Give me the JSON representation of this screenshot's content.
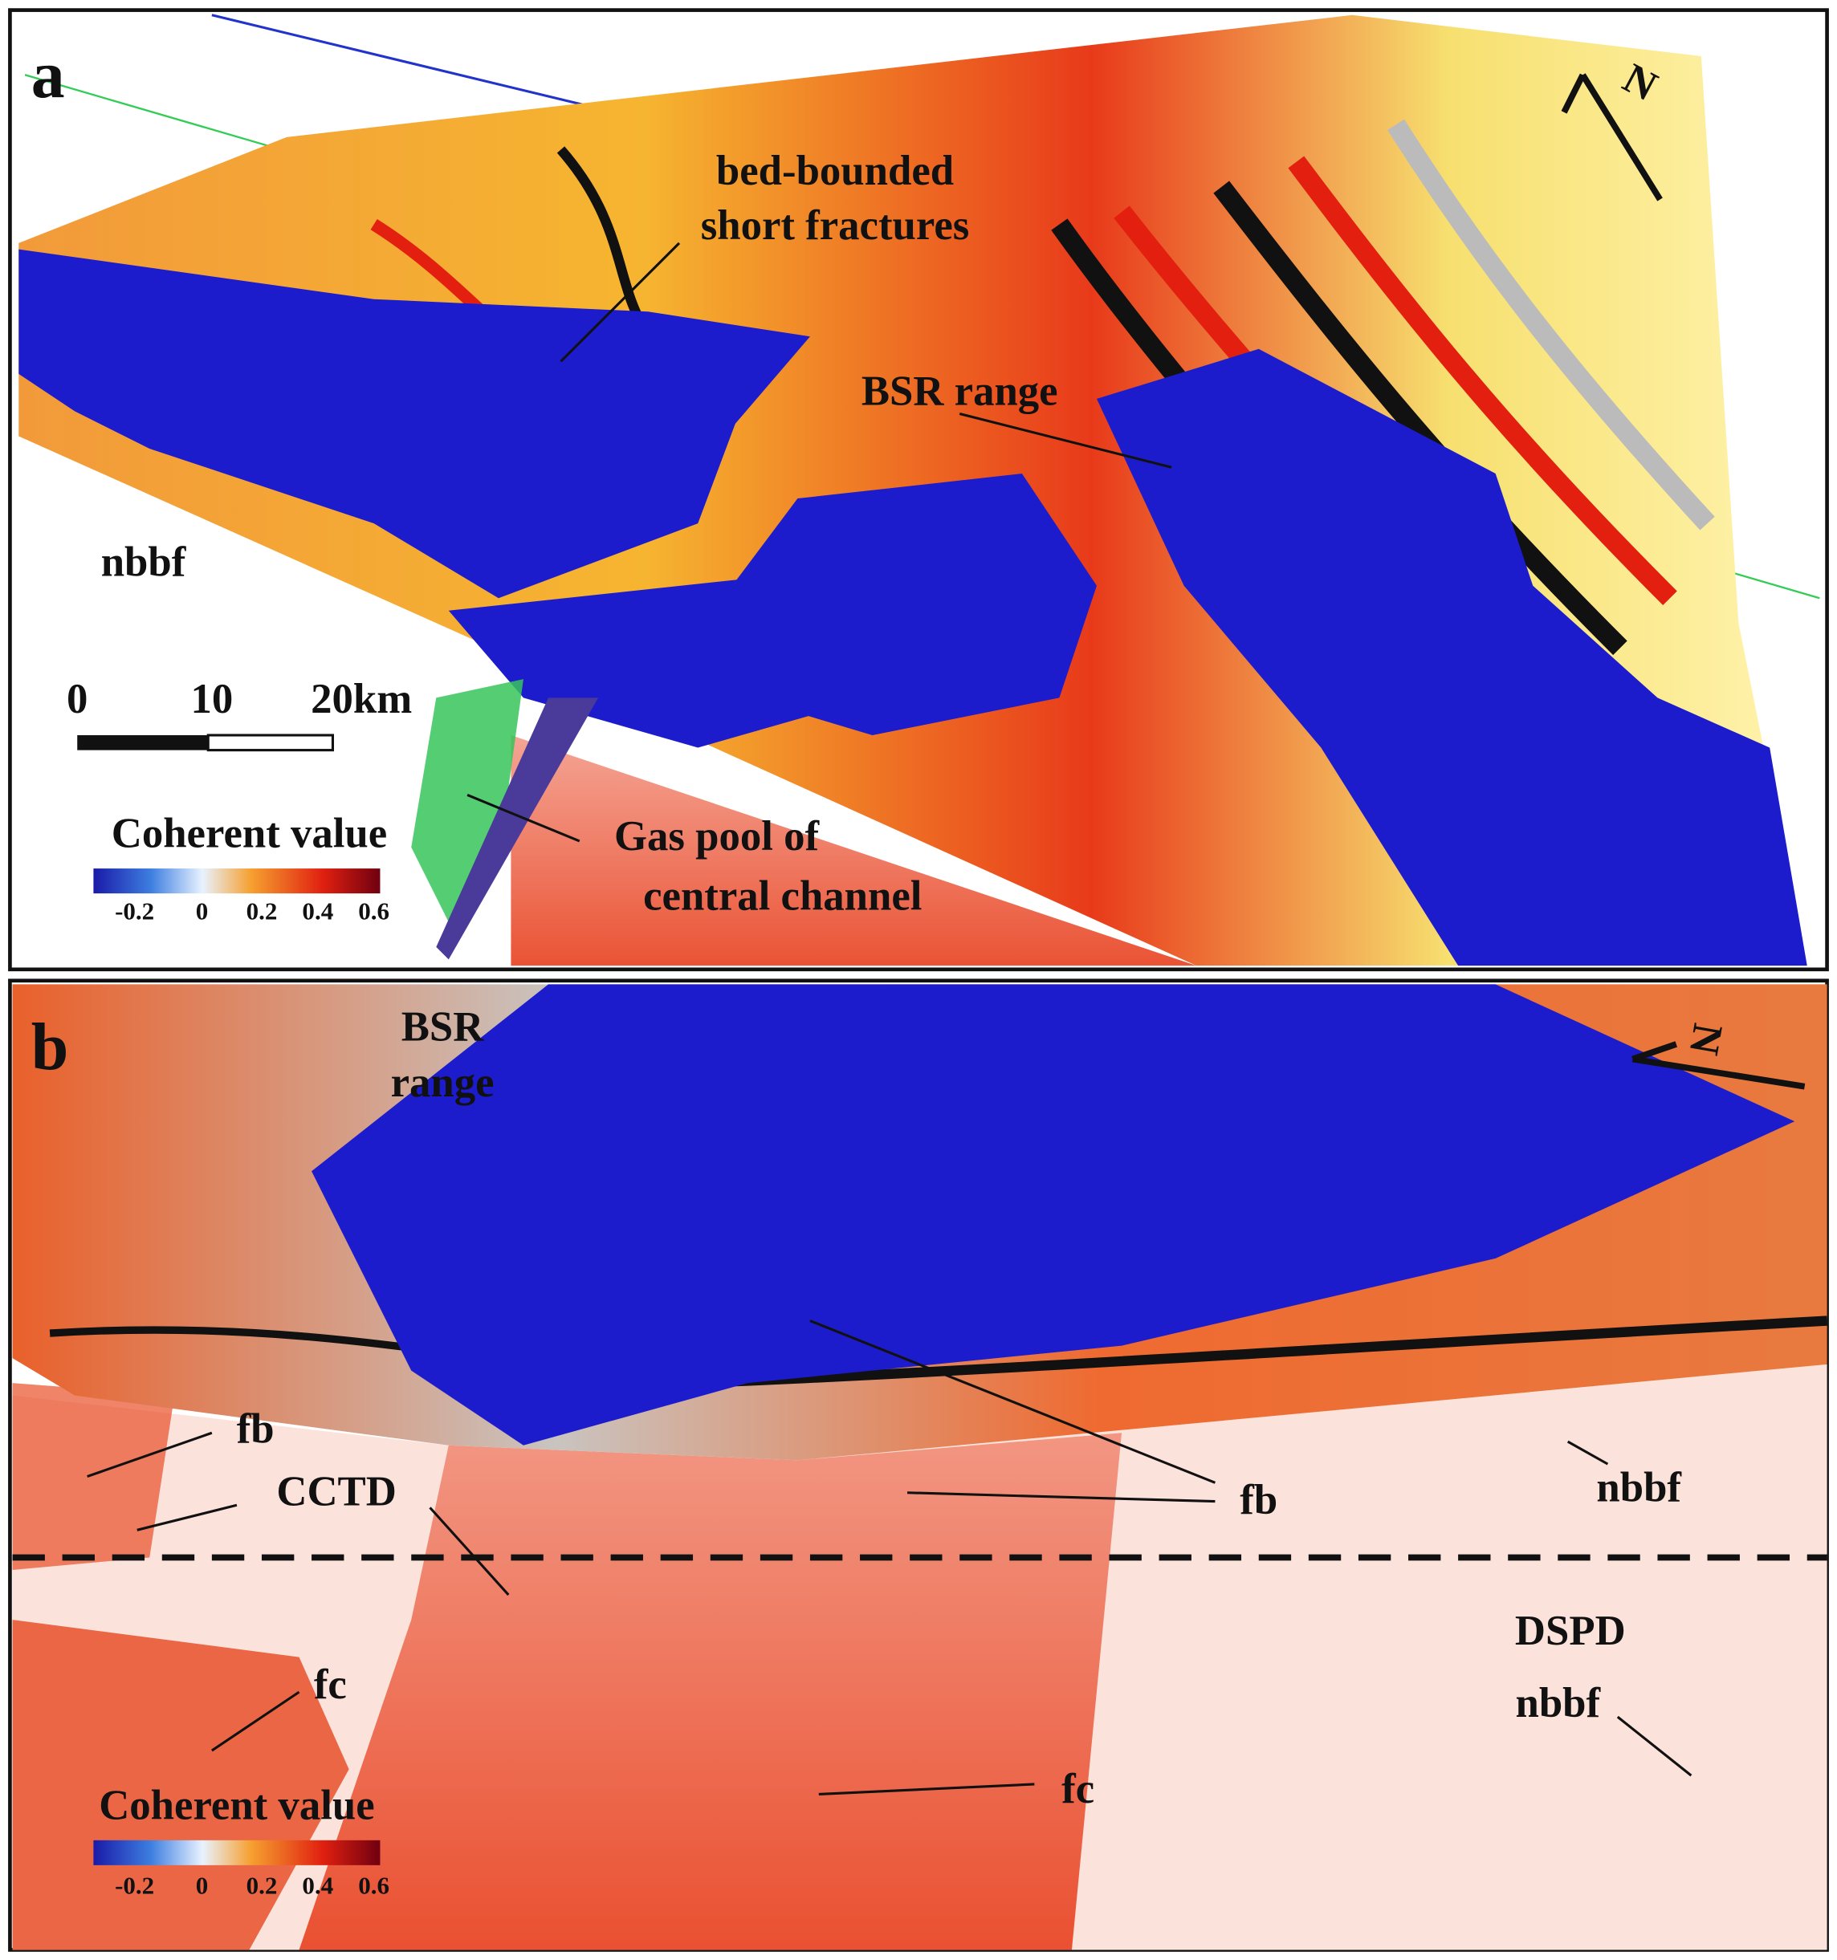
{
  "panels": [
    {
      "label": "a",
      "annotations": [
        "bed-bounded",
        "short fractures",
        "BSR range",
        "nbbf",
        "Gas pool of",
        "central channel"
      ],
      "scale_bar": [
        "0",
        "10",
        "20km"
      ],
      "colorbar": {
        "title": "Coherent value",
        "ticks": [
          "-0.2",
          "0",
          "0.2",
          "0.4",
          "0.6"
        ]
      },
      "north_arrow": "N"
    },
    {
      "label": "b",
      "annotations": [
        "BSR",
        "range",
        "fb",
        "CCTD",
        "fb",
        "nbbf",
        "DSPD",
        "nbbf",
        "fc",
        "fc"
      ],
      "colorbar": {
        "title": "Coherent value",
        "ticks": [
          "-0.2",
          "0",
          "0.2",
          "0.4",
          "0.6"
        ]
      },
      "north_arrow": "N"
    }
  ]
}
